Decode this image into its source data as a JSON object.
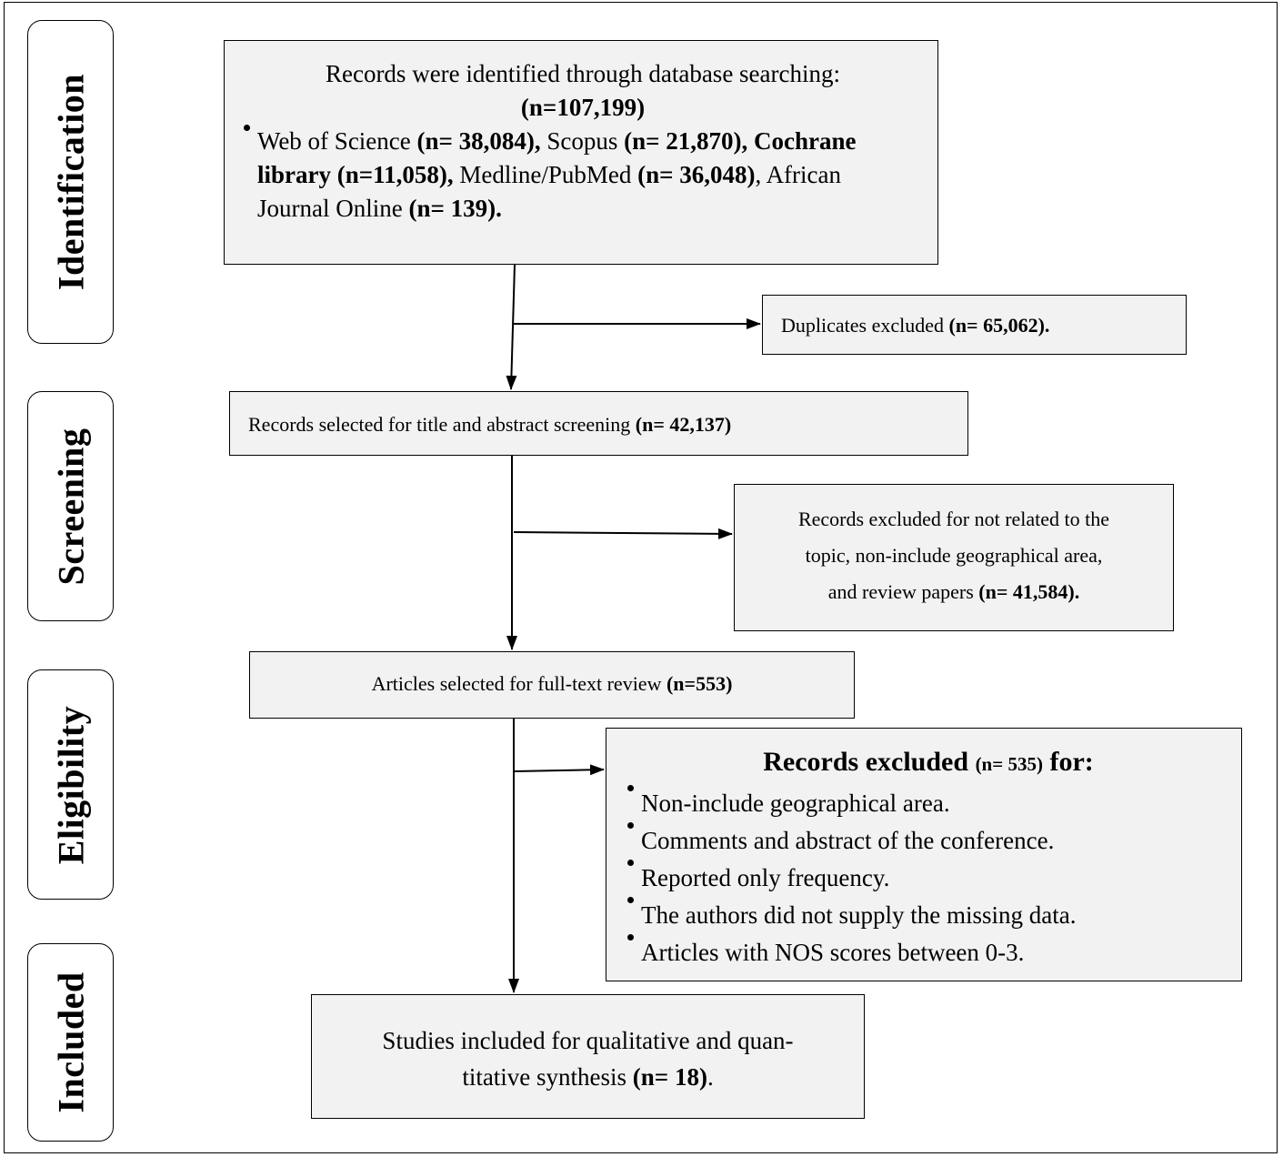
{
  "stages": [
    "Identification",
    "Screening",
    "Eligibility",
    "Included"
  ],
  "identification": {
    "line1": "Records were identified through database searching:",
    "total": "(n=107,199)",
    "sources": [
      {
        "name": "Web of Science",
        "n": "(n= 38,084),"
      },
      {
        "name": "Scopus",
        "n": "(n= 21,870),"
      },
      {
        "name": "Cochrane library",
        "n": "(n=11,058),"
      },
      {
        "name": "Medline/PubMed",
        "n": "(n= 36,048)"
      },
      {
        "name": "African Journal Online",
        "n": "(n= 139)."
      }
    ]
  },
  "duplicates": {
    "text": "Duplicates excluded",
    "n": "(n= 65,062)."
  },
  "screening": {
    "text": "Records selected for title and abstract screening",
    "n": "(n= 42,137)"
  },
  "screen_excluded": {
    "line1": "Records excluded for not related to the",
    "line2": "topic, non-include geographical area,",
    "line3": "and review papers",
    "n": "(n= 41,584)."
  },
  "fulltext": {
    "text": "Articles selected for full-text review",
    "n": "(n=553)"
  },
  "elig_excluded": {
    "title": "Records excluded",
    "n": "(n= 535)",
    "title_end": "for:",
    "reasons": [
      "Non-include geographical area.",
      "Comments and abstract of the conference.",
      "Reported only frequency.",
      "The authors did not supply the missing data.",
      "Articles with NOS scores between 0-3."
    ]
  },
  "included": {
    "line1": "Studies included for qualitative and quan-",
    "line2": "titative synthesis",
    "n": "(n= 18)",
    "end": "."
  }
}
